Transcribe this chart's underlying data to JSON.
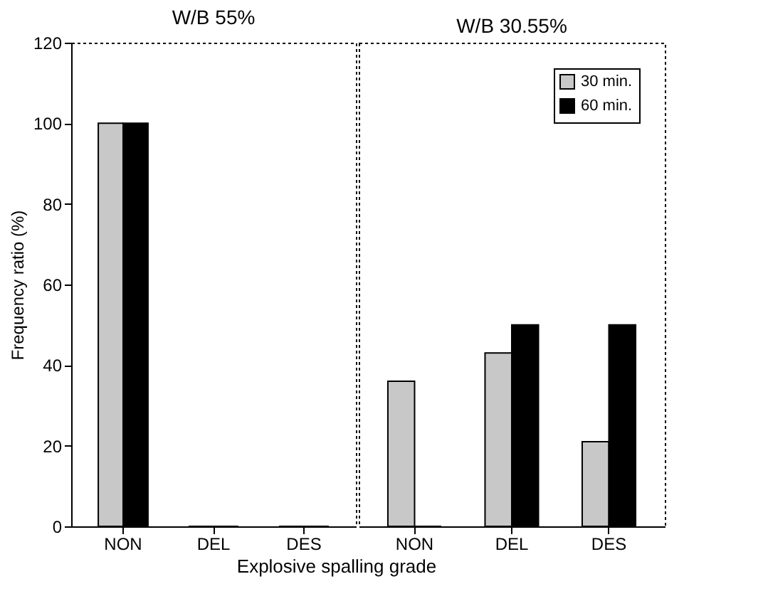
{
  "chart_data": [
    {
      "type": "bar",
      "title": "W/B 55%",
      "xlabel": "Explosive spalling grade",
      "ylabel": "Frequency ratio (%)",
      "categories": [
        "NON",
        "DEL",
        "DES"
      ],
      "series": [
        {
          "color": "#c8c8c8",
          "values": [
            100,
            0,
            0
          ]
        },
        {
          "color": "#000000",
          "values": [
            100,
            0,
            0
          ]
        }
      ],
      "ylim": [
        0,
        120
      ],
      "yticks": [
        0,
        20,
        40,
        60,
        80,
        100,
        120
      ],
      "grid": false,
      "legend": false
    },
    {
      "type": "bar",
      "title": "W/B 30.55%",
      "categories": [
        "NON",
        "DEL",
        "DES"
      ],
      "series": [
        {
          "name": "30 min.",
          "color": "#c8c8c8",
          "values": [
            36,
            43,
            21
          ]
        },
        {
          "name": "60 min.",
          "color": "#000000",
          "values": [
            0,
            50,
            50
          ]
        }
      ],
      "ylim": [
        0,
        120
      ],
      "yticks": [
        0,
        20,
        40,
        60,
        80,
        100,
        120
      ],
      "tick_labels": "x",
      "grid": false,
      "legend": "top right"
    }
  ]
}
